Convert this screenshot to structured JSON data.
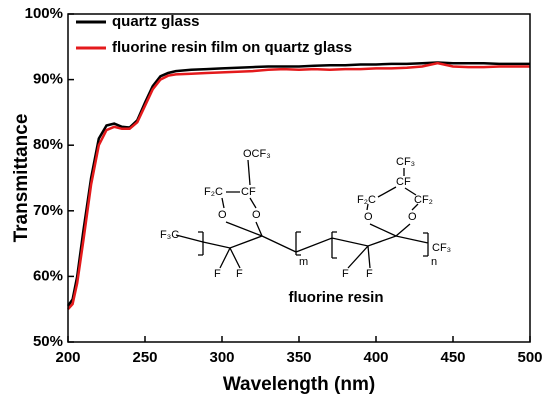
{
  "chart_data": {
    "type": "line",
    "x_label": "Wavelength (nm)",
    "y_label": "Transmittance",
    "x": [
      200,
      203,
      206,
      210,
      215,
      220,
      225,
      230,
      235,
      240,
      245,
      250,
      255,
      260,
      265,
      270,
      280,
      290,
      300,
      310,
      320,
      330,
      340,
      350,
      360,
      370,
      380,
      390,
      400,
      410,
      420,
      430,
      440,
      450,
      460,
      470,
      480,
      490,
      500
    ],
    "series": [
      {
        "name": "quartz glass",
        "color": "#000000",
        "values": [
          55.5,
          56.5,
          60,
          67,
          75,
          81,
          83,
          83.3,
          82.8,
          82.7,
          83.8,
          86.5,
          89,
          90.5,
          91,
          91.3,
          91.5,
          91.6,
          91.7,
          91.8,
          91.9,
          92,
          92,
          92,
          92.1,
          92.2,
          92.2,
          92.3,
          92.3,
          92.4,
          92.4,
          92.5,
          92.6,
          92.5,
          92.5,
          92.5,
          92.4,
          92.4,
          92.4
        ]
      },
      {
        "name": "fluorine resin film on quartz glass",
        "color": "#e41a1c",
        "values": [
          55,
          55.8,
          59,
          65.5,
          74,
          80,
          82.3,
          82.8,
          82.5,
          82.5,
          83.5,
          86,
          88.5,
          90,
          90.6,
          90.8,
          90.9,
          91,
          91.1,
          91.2,
          91.3,
          91.5,
          91.6,
          91.5,
          91.6,
          91.5,
          91.6,
          91.6,
          91.7,
          91.7,
          91.8,
          92,
          92.5,
          92,
          91.9,
          91.9,
          92,
          92,
          92
        ]
      }
    ],
    "xlim": [
      200,
      500
    ],
    "xticks": [
      200,
      250,
      300,
      350,
      400,
      450,
      500
    ],
    "ylim": [
      50,
      100
    ],
    "yticks": [
      {
        "value": 50,
        "label": "50%"
      },
      {
        "value": 60,
        "label": "60%"
      },
      {
        "value": 70,
        "label": "70%"
      },
      {
        "value": 80,
        "label": "80%"
      },
      {
        "value": 90,
        "label": "90%"
      },
      {
        "value": 100,
        "label": "100%"
      }
    ],
    "legend": "top-left",
    "inset": {
      "caption": "fluorine resin",
      "atoms": [
        "F₃C",
        "OCF₃",
        "F₂C",
        "CF",
        "O",
        "O",
        "F",
        "F",
        "m",
        "CF₃",
        "CF",
        "F₂C",
        "CF₂",
        "O",
        "O",
        "F",
        "F",
        "n",
        "CF₃"
      ]
    }
  }
}
